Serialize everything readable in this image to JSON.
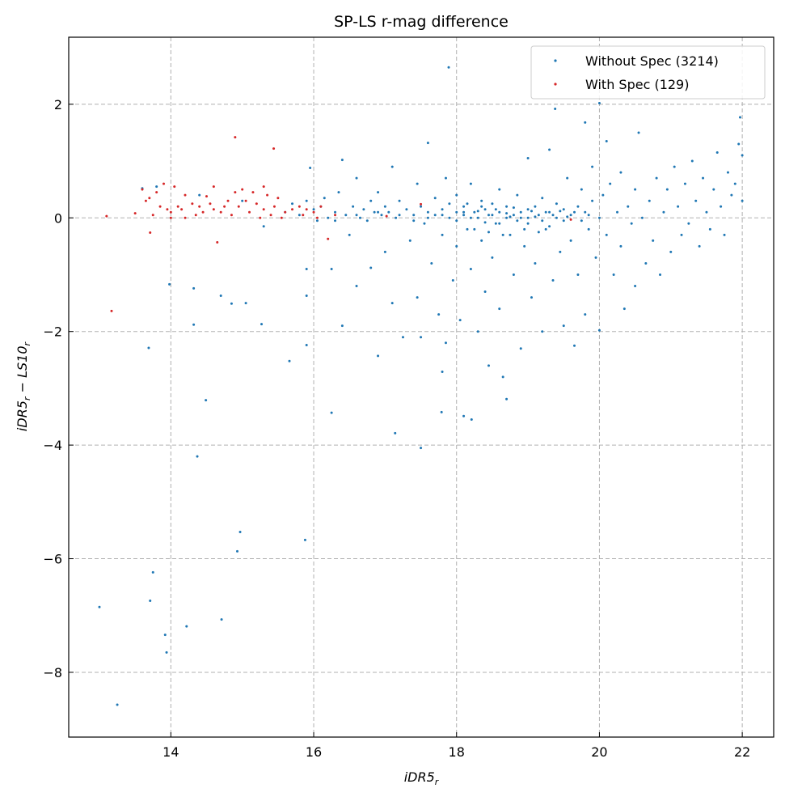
{
  "chart_data": {
    "type": "scatter",
    "title": "SP-LS r-mag difference",
    "xlabel": "iDR5_r",
    "ylabel": "iDR5_r − LS10_r",
    "xlim": [
      12.57,
      22.44
    ],
    "ylim": [
      -9.14,
      3.18
    ],
    "xticks": [
      14,
      16,
      18,
      20,
      22
    ],
    "yticks": [
      2,
      0,
      -2,
      -4,
      -6,
      -8
    ],
    "xtick_labels": [
      "14",
      "16",
      "18",
      "20",
      "22"
    ],
    "ytick_labels": [
      "2",
      "0",
      "−2",
      "−4",
      "−6",
      "−8"
    ],
    "grid": true,
    "legend_position": "top-right",
    "series": [
      {
        "name": "Without Spec (3214)",
        "color": "#1f77b4",
        "points": [
          [
            13.0,
            -6.85
          ],
          [
            13.25,
            -8.57
          ],
          [
            13.71,
            -6.74
          ],
          [
            13.75,
            -6.24
          ],
          [
            13.92,
            -7.34
          ],
          [
            13.94,
            -7.65
          ],
          [
            14.22,
            -7.19
          ],
          [
            14.71,
            -7.07
          ],
          [
            14.97,
            -5.53
          ],
          [
            14.93,
            -5.87
          ],
          [
            14.37,
            -4.2
          ],
          [
            14.49,
            -3.21
          ],
          [
            13.69,
            -2.29
          ],
          [
            13.98,
            -1.17
          ],
          [
            14.32,
            -1.24
          ],
          [
            14.32,
            -1.88
          ],
          [
            14.7,
            -1.37
          ],
          [
            14.85,
            -1.51
          ],
          [
            15.05,
            -1.5
          ],
          [
            15.27,
            -1.87
          ],
          [
            15.66,
            -2.52
          ],
          [
            15.88,
            -5.67
          ],
          [
            15.9,
            -2.24
          ],
          [
            15.9,
            -1.37
          ],
          [
            16.25,
            -3.43
          ],
          [
            17.14,
            -3.79
          ],
          [
            17.5,
            -4.05
          ],
          [
            17.89,
            2.65
          ],
          [
            17.79,
            -3.42
          ],
          [
            18.1,
            -3.49
          ],
          [
            18.21,
            -3.55
          ],
          [
            18.7,
            -3.19
          ],
          [
            17.8,
            -2.71
          ],
          [
            19.38,
            1.92
          ],
          [
            19.8,
            1.68
          ],
          [
            20.0,
            2.02
          ],
          [
            21.97,
            1.77
          ],
          [
            13.6,
            0.52
          ],
          [
            13.8,
            0.55
          ],
          [
            14.4,
            0.4
          ],
          [
            15.0,
            0.3
          ],
          [
            15.3,
            -0.15
          ],
          [
            15.6,
            0.1
          ],
          [
            15.7,
            0.25
          ],
          [
            15.8,
            0.05
          ],
          [
            15.9,
            0.3
          ],
          [
            15.9,
            -0.9
          ],
          [
            15.95,
            0.88
          ],
          [
            16.0,
            0.15
          ],
          [
            16.05,
            -0.05
          ],
          [
            16.1,
            0.2
          ],
          [
            16.15,
            0.35
          ],
          [
            16.2,
            0.0
          ],
          [
            16.25,
            -0.9
          ],
          [
            16.3,
            0.1
          ],
          [
            16.35,
            0.45
          ],
          [
            16.4,
            1.02
          ],
          [
            16.4,
            -1.9
          ],
          [
            16.45,
            0.05
          ],
          [
            16.5,
            -0.3
          ],
          [
            16.55,
            0.2
          ],
          [
            16.6,
            0.7
          ],
          [
            16.6,
            -1.2
          ],
          [
            16.65,
            0.0
          ],
          [
            16.7,
            0.15
          ],
          [
            16.75,
            -0.05
          ],
          [
            16.8,
            0.3
          ],
          [
            16.8,
            -0.88
          ],
          [
            16.85,
            0.1
          ],
          [
            16.9,
            -2.43
          ],
          [
            16.9,
            0.45
          ],
          [
            16.95,
            0.05
          ],
          [
            17.0,
            -0.6
          ],
          [
            17.0,
            0.2
          ],
          [
            17.05,
            0.1
          ],
          [
            17.1,
            -1.5
          ],
          [
            17.1,
            0.9
          ],
          [
            17.15,
            0.0
          ],
          [
            17.2,
            0.3
          ],
          [
            17.25,
            -2.1
          ],
          [
            17.3,
            0.15
          ],
          [
            17.35,
            -0.4
          ],
          [
            17.4,
            0.05
          ],
          [
            17.45,
            0.6
          ],
          [
            17.45,
            -1.4
          ],
          [
            17.5,
            0.2
          ],
          [
            17.5,
            -2.1
          ],
          [
            17.55,
            -0.1
          ],
          [
            17.6,
            1.32
          ],
          [
            17.6,
            0.1
          ],
          [
            17.65,
            -0.8
          ],
          [
            17.7,
            0.35
          ],
          [
            17.7,
            0.05
          ],
          [
            17.75,
            -1.7
          ],
          [
            17.8,
            0.15
          ],
          [
            17.8,
            -0.3
          ],
          [
            17.85,
            0.7
          ],
          [
            17.85,
            -2.2
          ],
          [
            17.9,
            0.0
          ],
          [
            17.9,
            0.25
          ],
          [
            17.95,
            -1.1
          ],
          [
            18.0,
            0.1
          ],
          [
            18.0,
            0.4
          ],
          [
            18.0,
            -0.5
          ],
          [
            18.05,
            -1.8
          ],
          [
            18.1,
            0.05
          ],
          [
            18.1,
            0.2
          ],
          [
            18.15,
            -0.2
          ],
          [
            18.2,
            0.6
          ],
          [
            18.2,
            -0.9
          ],
          [
            18.25,
            0.1
          ],
          [
            18.3,
            0.0
          ],
          [
            18.3,
            -2.0
          ],
          [
            18.35,
            0.3
          ],
          [
            18.35,
            -0.4
          ],
          [
            18.4,
            0.15
          ],
          [
            18.4,
            -1.3
          ],
          [
            18.45,
            0.05
          ],
          [
            18.45,
            -2.6
          ],
          [
            18.5,
            0.25
          ],
          [
            18.5,
            -0.7
          ],
          [
            18.55,
            -0.1
          ],
          [
            18.6,
            0.1
          ],
          [
            18.6,
            0.5
          ],
          [
            18.6,
            -1.6
          ],
          [
            18.65,
            -2.8
          ],
          [
            18.7,
            0.0
          ],
          [
            18.7,
            0.2
          ],
          [
            18.75,
            -0.3
          ],
          [
            18.8,
            0.05
          ],
          [
            18.8,
            -1.0
          ],
          [
            18.85,
            0.4
          ],
          [
            18.9,
            0.1
          ],
          [
            18.9,
            -2.3
          ],
          [
            18.95,
            -0.5
          ],
          [
            19.0,
            0.15
          ],
          [
            19.0,
            0.0
          ],
          [
            19.0,
            1.05
          ],
          [
            19.05,
            -1.4
          ],
          [
            19.1,
            0.2
          ],
          [
            19.1,
            -0.8
          ],
          [
            19.15,
            0.05
          ],
          [
            19.2,
            0.35
          ],
          [
            19.2,
            -2.0
          ],
          [
            19.25,
            -0.2
          ],
          [
            19.3,
            0.1
          ],
          [
            19.3,
            1.2
          ],
          [
            19.35,
            -1.1
          ],
          [
            19.4,
            0.0
          ],
          [
            19.4,
            0.25
          ],
          [
            19.45,
            -0.6
          ],
          [
            19.5,
            0.15
          ],
          [
            19.5,
            -1.9
          ],
          [
            19.55,
            0.7
          ],
          [
            19.6,
            0.05
          ],
          [
            19.6,
            -0.4
          ],
          [
            19.65,
            -2.25
          ],
          [
            19.7,
            0.2
          ],
          [
            19.7,
            -1.0
          ],
          [
            19.75,
            0.5
          ],
          [
            19.8,
            0.1
          ],
          [
            19.8,
            -1.7
          ],
          [
            19.85,
            -0.2
          ],
          [
            19.9,
            0.3
          ],
          [
            19.9,
            0.9
          ],
          [
            19.95,
            -0.7
          ],
          [
            20.0,
            0.0
          ],
          [
            20.0,
            -1.98
          ],
          [
            20.05,
            0.4
          ],
          [
            20.1,
            -0.3
          ],
          [
            20.1,
            1.35
          ],
          [
            20.15,
            0.6
          ],
          [
            20.2,
            -1.0
          ],
          [
            20.25,
            0.1
          ],
          [
            20.3,
            -0.5
          ],
          [
            20.3,
            0.8
          ],
          [
            20.35,
            -1.6
          ],
          [
            20.4,
            0.2
          ],
          [
            20.45,
            -0.1
          ],
          [
            20.5,
            0.5
          ],
          [
            20.5,
            -1.2
          ],
          [
            20.55,
            1.5
          ],
          [
            20.6,
            0.0
          ],
          [
            20.65,
            -0.8
          ],
          [
            20.7,
            0.3
          ],
          [
            20.75,
            -0.4
          ],
          [
            20.8,
            0.7
          ],
          [
            20.85,
            -1.0
          ],
          [
            20.9,
            0.1
          ],
          [
            20.95,
            0.5
          ],
          [
            21.0,
            -0.6
          ],
          [
            21.05,
            0.9
          ],
          [
            21.1,
            0.2
          ],
          [
            21.15,
            -0.3
          ],
          [
            21.2,
            0.6
          ],
          [
            21.25,
            -0.1
          ],
          [
            21.3,
            1.0
          ],
          [
            21.35,
            0.3
          ],
          [
            21.4,
            -0.5
          ],
          [
            21.45,
            0.7
          ],
          [
            21.5,
            0.1
          ],
          [
            21.55,
            -0.2
          ],
          [
            21.6,
            0.5
          ],
          [
            21.65,
            1.15
          ],
          [
            21.7,
            0.2
          ],
          [
            21.75,
            -0.3
          ],
          [
            21.8,
            0.8
          ],
          [
            21.85,
            0.4
          ],
          [
            21.9,
            0.6
          ],
          [
            21.95,
            1.3
          ],
          [
            22.0,
            0.3
          ],
          [
            22.0,
            1.1
          ],
          [
            17.6,
            0.0
          ],
          [
            17.8,
            0.05
          ],
          [
            18.0,
            -0.05
          ],
          [
            18.1,
            0.1
          ],
          [
            18.2,
            0.0
          ],
          [
            18.3,
            0.12
          ],
          [
            18.4,
            -0.08
          ],
          [
            18.5,
            0.05
          ],
          [
            18.55,
            0.15
          ],
          [
            18.6,
            -0.1
          ],
          [
            18.7,
            0.08
          ],
          [
            18.75,
            0.02
          ],
          [
            18.8,
            0.18
          ],
          [
            18.85,
            -0.05
          ],
          [
            18.9,
            0.0
          ],
          [
            19.0,
            -0.1
          ],
          [
            19.05,
            0.12
          ],
          [
            19.1,
            0.02
          ],
          [
            19.2,
            -0.05
          ],
          [
            19.25,
            0.1
          ],
          [
            19.3,
            -0.15
          ],
          [
            19.35,
            0.05
          ],
          [
            19.45,
            0.12
          ],
          [
            19.5,
            -0.05
          ],
          [
            19.55,
            0.02
          ],
          [
            19.65,
            0.1
          ],
          [
            19.75,
            -0.05
          ],
          [
            19.85,
            0.05
          ],
          [
            17.2,
            0.05
          ],
          [
            17.4,
            -0.05
          ],
          [
            16.9,
            0.1
          ],
          [
            16.6,
            0.05
          ],
          [
            16.3,
            -0.05
          ],
          [
            18.25,
            -0.2
          ],
          [
            18.45,
            -0.25
          ],
          [
            18.65,
            -0.3
          ],
          [
            18.95,
            -0.2
          ],
          [
            19.15,
            -0.25
          ],
          [
            18.35,
            0.2
          ],
          [
            18.15,
            0.25
          ]
        ]
      },
      {
        "name": "With Spec (129)",
        "color": "#d62728",
        "points": [
          [
            13.1,
            0.03
          ],
          [
            13.17,
            -1.64
          ],
          [
            13.5,
            0.08
          ],
          [
            13.6,
            0.5
          ],
          [
            13.65,
            0.3
          ],
          [
            13.7,
            0.35
          ],
          [
            13.71,
            -0.26
          ],
          [
            13.75,
            0.05
          ],
          [
            13.8,
            0.45
          ],
          [
            13.85,
            0.2
          ],
          [
            13.9,
            0.6
          ],
          [
            13.95,
            0.15
          ],
          [
            14.0,
            0.0
          ],
          [
            14.0,
            0.1
          ],
          [
            14.05,
            0.55
          ],
          [
            14.1,
            0.2
          ],
          [
            14.15,
            0.15
          ],
          [
            14.2,
            0.4
          ],
          [
            14.2,
            0.0
          ],
          [
            14.3,
            0.25
          ],
          [
            14.35,
            0.05
          ],
          [
            14.4,
            0.2
          ],
          [
            14.45,
            0.1
          ],
          [
            14.5,
            0.38
          ],
          [
            14.55,
            0.25
          ],
          [
            14.6,
            0.15
          ],
          [
            14.6,
            0.55
          ],
          [
            14.65,
            -0.43
          ],
          [
            14.7,
            0.1
          ],
          [
            14.75,
            0.2
          ],
          [
            14.8,
            0.3
          ],
          [
            14.85,
            0.05
          ],
          [
            14.9,
            1.42
          ],
          [
            14.9,
            0.45
          ],
          [
            14.95,
            0.2
          ],
          [
            15.0,
            0.5
          ],
          [
            15.05,
            0.3
          ],
          [
            15.1,
            0.1
          ],
          [
            15.15,
            0.45
          ],
          [
            15.2,
            0.25
          ],
          [
            15.25,
            0.0
          ],
          [
            15.3,
            0.55
          ],
          [
            15.3,
            0.15
          ],
          [
            15.35,
            0.4
          ],
          [
            15.4,
            0.05
          ],
          [
            15.44,
            1.22
          ],
          [
            15.45,
            0.2
          ],
          [
            15.5,
            0.35
          ],
          [
            15.55,
            0.0
          ],
          [
            15.6,
            0.1
          ],
          [
            15.7,
            0.15
          ],
          [
            15.8,
            0.2
          ],
          [
            15.85,
            0.05
          ],
          [
            15.9,
            0.15
          ],
          [
            16.0,
            0.1
          ],
          [
            16.05,
            0.0
          ],
          [
            16.1,
            0.2
          ],
          [
            16.2,
            -0.37
          ],
          [
            16.3,
            0.05
          ],
          [
            17.02,
            0.03
          ],
          [
            17.5,
            0.24
          ],
          [
            19.6,
            -0.03
          ]
        ]
      }
    ]
  }
}
